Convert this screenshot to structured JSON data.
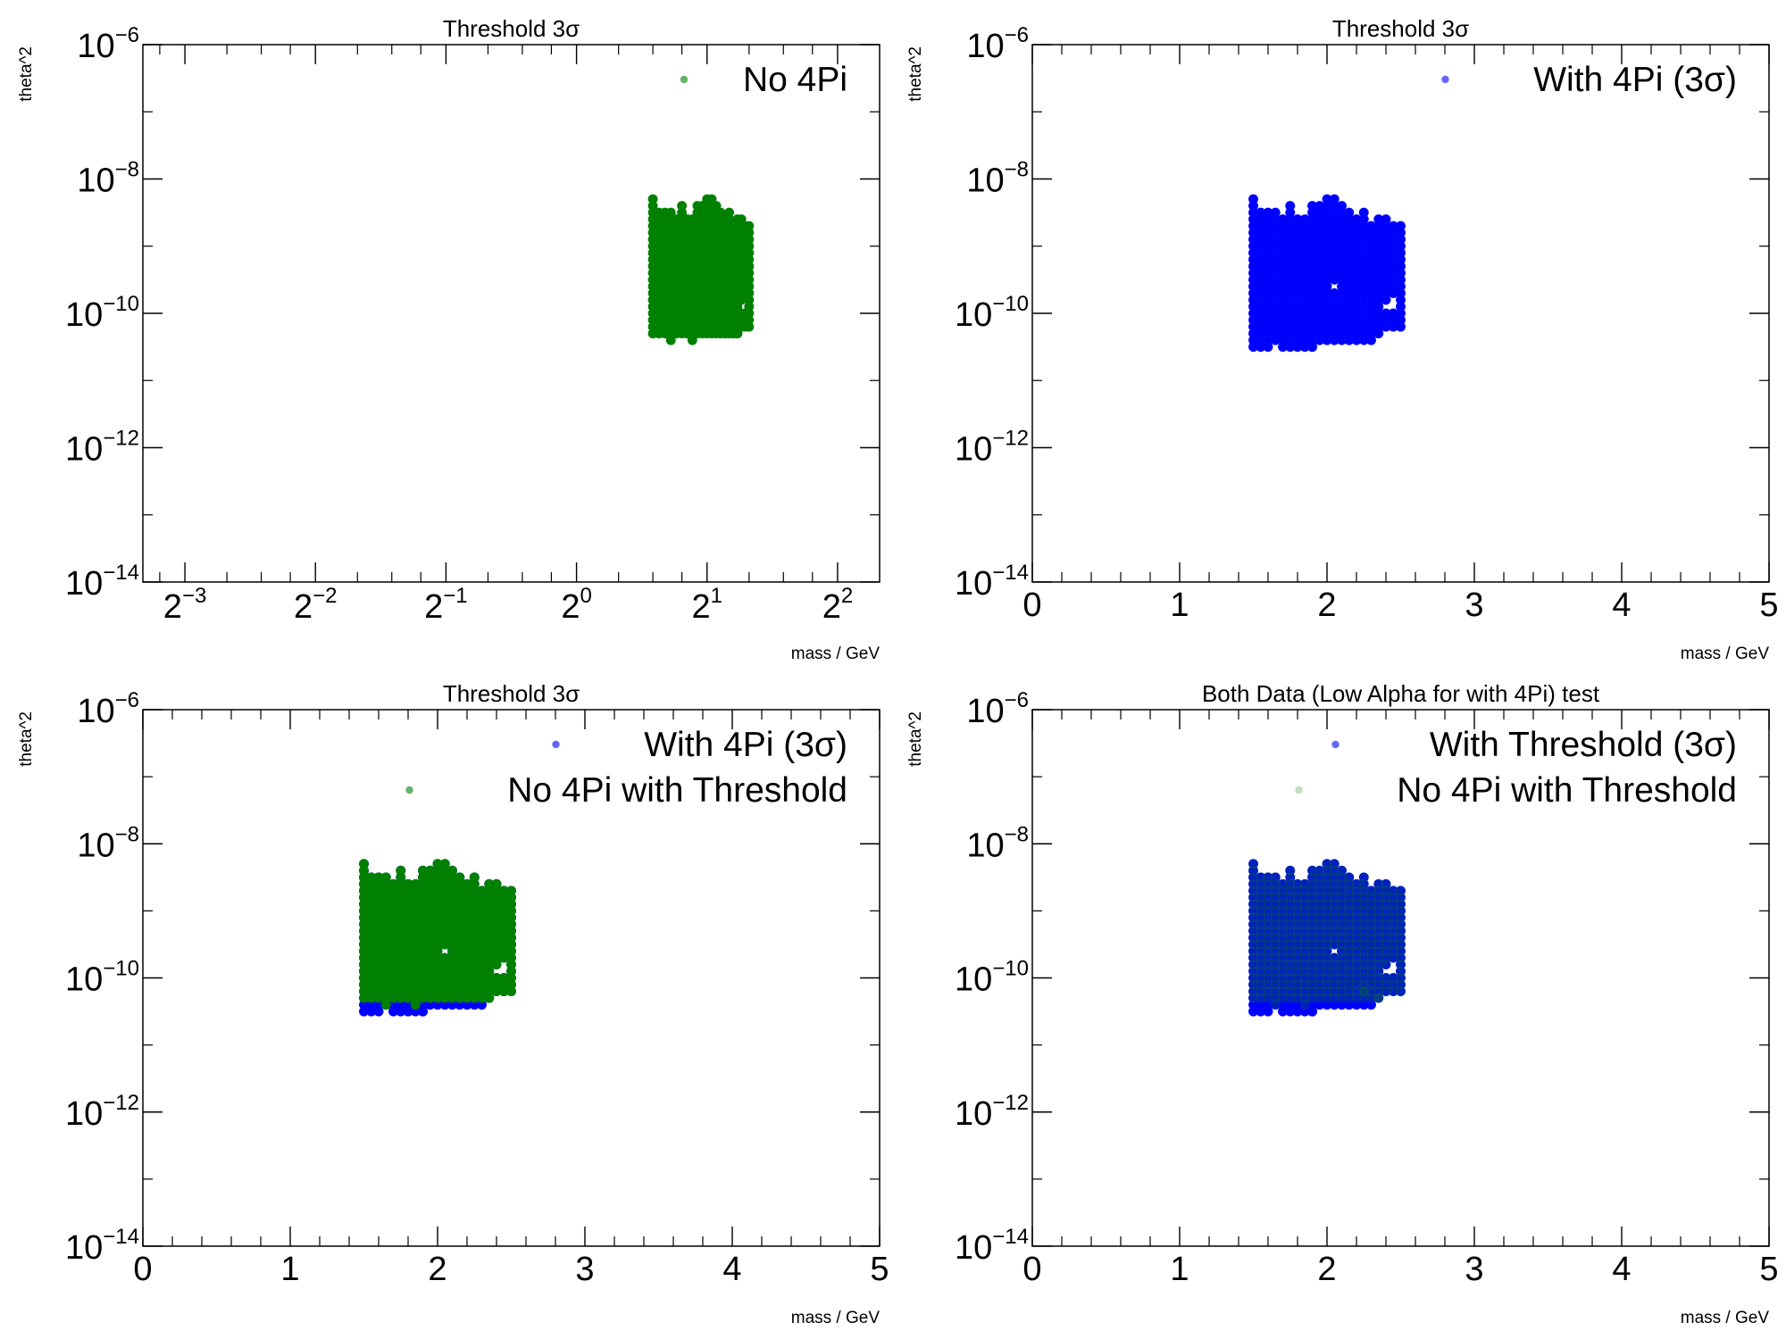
{
  "figure": {
    "background": "#ffffff",
    "colors": {
      "green": "#008000",
      "blue": "#0000ff",
      "frame": "#000000"
    }
  },
  "chart_data": [
    {
      "type": "scatter",
      "title": "Threshold 3σ",
      "xlabel": "mass / GeV",
      "ylabel": "theta^2",
      "xscale": "log2",
      "yscale": "log10",
      "xlim": [
        0.1,
        5.0
      ],
      "ylim": [
        1e-14,
        1e-06
      ],
      "xticks": [
        {
          "base": "2",
          "exp": "−3"
        },
        {
          "base": "2",
          "exp": "−2"
        },
        {
          "base": "2",
          "exp": "−1"
        },
        {
          "base": "2",
          "exp": "0"
        },
        {
          "base": "2",
          "exp": "1"
        },
        {
          "base": "2",
          "exp": "2"
        }
      ],
      "yticks": [
        {
          "base": "10",
          "exp": "−14"
        },
        {
          "base": "10",
          "exp": "−12"
        },
        {
          "base": "10",
          "exp": "−10"
        },
        {
          "base": "10",
          "exp": "−8"
        },
        {
          "base": "10",
          "exp": "−6"
        }
      ],
      "legend_position": "top-right",
      "series": [
        {
          "name": "No 4Pi",
          "color": "#008000",
          "dataset": "noFourPi"
        }
      ]
    },
    {
      "type": "scatter",
      "title": "Threshold 3σ",
      "xlabel": "mass / GeV",
      "ylabel": "theta^2",
      "xscale": "linear",
      "yscale": "log10",
      "xlim": [
        0,
        5
      ],
      "ylim": [
        1e-14,
        1e-06
      ],
      "xticks": [
        {
          "base": "0"
        },
        {
          "base": "1"
        },
        {
          "base": "2"
        },
        {
          "base": "3"
        },
        {
          "base": "4"
        },
        {
          "base": "5"
        }
      ],
      "yticks": [
        {
          "base": "10",
          "exp": "−14"
        },
        {
          "base": "10",
          "exp": "−12"
        },
        {
          "base": "10",
          "exp": "−10"
        },
        {
          "base": "10",
          "exp": "−8"
        },
        {
          "base": "10",
          "exp": "−6"
        }
      ],
      "legend_position": "top-right",
      "series": [
        {
          "name": "With 4Pi (3σ)",
          "color": "#0000ff",
          "dataset": "withFourPi"
        }
      ]
    },
    {
      "type": "scatter",
      "title": "Threshold 3σ",
      "xlabel": "mass / GeV",
      "ylabel": "theta^2",
      "xscale": "linear",
      "yscale": "log10",
      "xlim": [
        0,
        5
      ],
      "ylim": [
        1e-14,
        1e-06
      ],
      "xticks": [
        {
          "base": "0"
        },
        {
          "base": "1"
        },
        {
          "base": "2"
        },
        {
          "base": "3"
        },
        {
          "base": "4"
        },
        {
          "base": "5"
        }
      ],
      "yticks": [
        {
          "base": "10",
          "exp": "−14"
        },
        {
          "base": "10",
          "exp": "−12"
        },
        {
          "base": "10",
          "exp": "−10"
        },
        {
          "base": "10",
          "exp": "−8"
        },
        {
          "base": "10",
          "exp": "−6"
        }
      ],
      "legend_position": "top-right",
      "series": [
        {
          "name": "With 4Pi (3σ)",
          "color": "#0000ff",
          "dataset": "withFourPi"
        },
        {
          "name": "No 4Pi with Threshold",
          "color": "#008000",
          "dataset": "noFourPi"
        }
      ]
    },
    {
      "type": "scatter",
      "title": "Both Data (Low Alpha for with 4Pi) test",
      "xlabel": "mass / GeV",
      "ylabel": "theta^2",
      "xscale": "linear",
      "yscale": "log10",
      "xlim": [
        0,
        5
      ],
      "ylim": [
        1e-14,
        1e-06
      ],
      "xticks": [
        {
          "base": "0"
        },
        {
          "base": "1"
        },
        {
          "base": "2"
        },
        {
          "base": "3"
        },
        {
          "base": "4"
        },
        {
          "base": "5"
        }
      ],
      "yticks": [
        {
          "base": "10",
          "exp": "−14"
        },
        {
          "base": "10",
          "exp": "−12"
        },
        {
          "base": "10",
          "exp": "−10"
        },
        {
          "base": "10",
          "exp": "−8"
        },
        {
          "base": "10",
          "exp": "−6"
        }
      ],
      "legend_position": "top-right",
      "series": [
        {
          "name": "With Threshold (3σ)",
          "color": "#0000ff",
          "dataset": "withFourPi"
        },
        {
          "name": "No 4Pi with Threshold",
          "color": "#008000",
          "dataset": "noFourPi",
          "alpha": 0.25
        }
      ]
    }
  ],
  "datasets": {
    "grid": {
      "mass": [
        1.5,
        1.55,
        1.6,
        1.65,
        1.7,
        1.75,
        1.8,
        1.85,
        1.9,
        1.95,
        2.0,
        2.05,
        2.1,
        2.15,
        2.2,
        2.25,
        2.3,
        2.35,
        2.4,
        2.45,
        2.5
      ],
      "log10_theta2": [
        -10.5,
        -10.4,
        -10.3,
        -10.2,
        -10.1,
        -10.0,
        -9.9,
        -9.8,
        -9.7,
        -9.6,
        -9.5,
        -9.4,
        -9.3,
        -9.2,
        -9.1,
        -9.0,
        -8.9,
        -8.8,
        -8.7,
        -8.6,
        -8.5,
        -8.4,
        -8.3
      ]
    },
    "withFourPi": {
      "bottom_row_index": [
        0,
        0,
        0,
        1,
        0,
        0,
        0,
        0,
        0,
        1,
        1,
        1,
        1,
        1,
        1,
        1,
        1,
        2,
        3,
        3,
        3
      ],
      "top_row_index": [
        22,
        20,
        20,
        20,
        19,
        21,
        19,
        19,
        21,
        21,
        22,
        22,
        21,
        20,
        19,
        20,
        18,
        19,
        19,
        18,
        18
      ],
      "holes": [
        [
          2.4,
          -9.9
        ],
        [
          2.45,
          -9.8
        ],
        [
          2.45,
          -9.9
        ],
        [
          2.05,
          -9.6
        ]
      ],
      "extras": [
        [
          1.9,
          -10.5
        ],
        [
          2.35,
          -10.2
        ],
        [
          2.25,
          -10.3
        ]
      ]
    },
    "noFourPi": {
      "bottom_row_index": [
        2,
        2,
        2,
        1,
        2,
        2,
        2,
        2,
        2,
        2,
        2,
        2,
        2,
        2,
        2,
        2,
        2,
        2,
        3,
        3,
        3
      ],
      "top_row_index": [
        22,
        20,
        20,
        20,
        19,
        21,
        19,
        19,
        21,
        21,
        22,
        22,
        21,
        20,
        19,
        20,
        18,
        19,
        19,
        18,
        18
      ],
      "holes": [
        [
          2.4,
          -9.9
        ],
        [
          2.45,
          -9.8
        ],
        [
          2.45,
          -9.9
        ],
        [
          2.05,
          -9.6
        ]
      ],
      "extras": [
        [
          2.35,
          -10.3
        ],
        [
          2.25,
          -10.2
        ],
        [
          1.85,
          -10.4
        ]
      ]
    }
  }
}
